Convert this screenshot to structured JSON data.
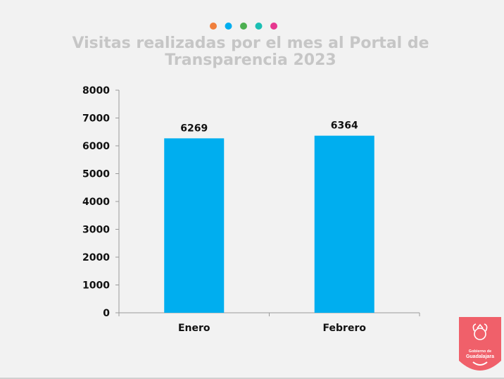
{
  "header": {
    "dot_colors": [
      "#f07f3c",
      "#00aeef",
      "#4caf50",
      "#1bbfb3",
      "#e6378f"
    ],
    "title_lines": [
      "Visitas realizadas por el mes al Portal de",
      "Transparencia 2023"
    ]
  },
  "chart_data": {
    "type": "bar",
    "title": "Visitas realizadas por el mes al Portal de Transparencia 2023",
    "categories": [
      "Enero",
      "Febrero"
    ],
    "values": [
      6269,
      6364
    ],
    "value_labels": [
      "6269",
      "6364"
    ],
    "ylim": [
      0,
      8000
    ],
    "yticks": [
      0,
      1000,
      2000,
      3000,
      4000,
      5000,
      6000,
      7000,
      8000
    ],
    "ytick_labels": [
      "0",
      "1000",
      "2000",
      "3000",
      "4000",
      "5000",
      "6000",
      "7000",
      "8000"
    ],
    "bar_color": "#00aeef",
    "grid": false,
    "legend": "none"
  },
  "logo": {
    "name": "guadalajara-seal-icon",
    "color": "#f0606a",
    "line1": "Gobierno de",
    "line2": "Guadalajara"
  }
}
